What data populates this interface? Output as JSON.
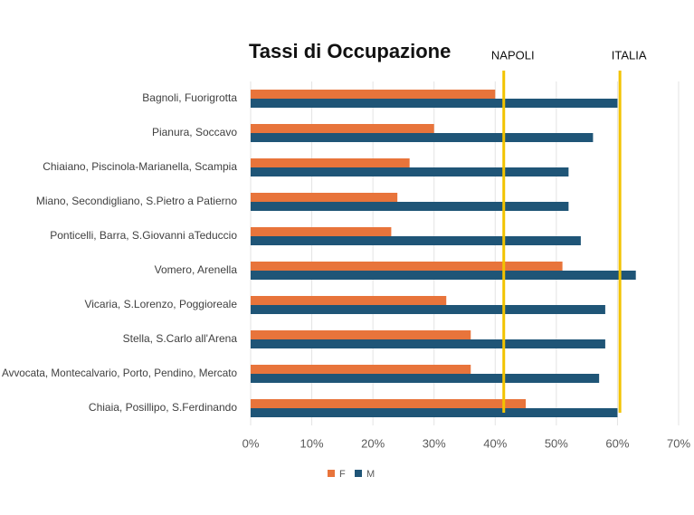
{
  "chart_data": {
    "type": "bar",
    "orientation": "horizontal",
    "title": "Tassi di Occupazione",
    "categories": [
      "Bagnoli, Fuorigrotta",
      "Pianura, Soccavo",
      "Chiaiano, Piscinola-Marianella, Scampia",
      "Miano, Secondigliano, S.Pietro a Patierno",
      "Ponticelli, Barra, S.Giovanni aTeduccio",
      "Vomero, Arenella",
      "Vicaria, S.Lorenzo, Poggioreale",
      "Stella, S.Carlo all'Arena",
      "Avvocata, Montecalvario, Porto, Pendino, Mercato",
      "Chiaia, Posillipo, S.Ferdinando"
    ],
    "series": [
      {
        "name": "F",
        "color": "#e8743b",
        "values": [
          40,
          30,
          26,
          24,
          23,
          51,
          32,
          36,
          36,
          45
        ]
      },
      {
        "name": "M",
        "color": "#1f5577",
        "values": [
          60,
          56,
          52,
          52,
          54,
          63,
          58,
          58,
          57,
          60
        ]
      }
    ],
    "reference_lines": [
      {
        "label": "NAPOLI",
        "value": 41.4,
        "color": "#f2c300"
      },
      {
        "label": "ITALIA",
        "value": 60.4,
        "color": "#f2c300"
      }
    ],
    "xlim": [
      0,
      70
    ],
    "xticks": [
      {
        "value": 0,
        "label": "0%"
      },
      {
        "value": 10,
        "label": "10%"
      },
      {
        "value": 20,
        "label": "20%"
      },
      {
        "value": 30,
        "label": "30%"
      },
      {
        "value": 40,
        "label": "40%"
      },
      {
        "value": 50,
        "label": "50%"
      },
      {
        "value": 60,
        "label": "60%"
      },
      {
        "value": 70,
        "label": "70%"
      }
    ],
    "grid": true,
    "legend": "bottom"
  }
}
